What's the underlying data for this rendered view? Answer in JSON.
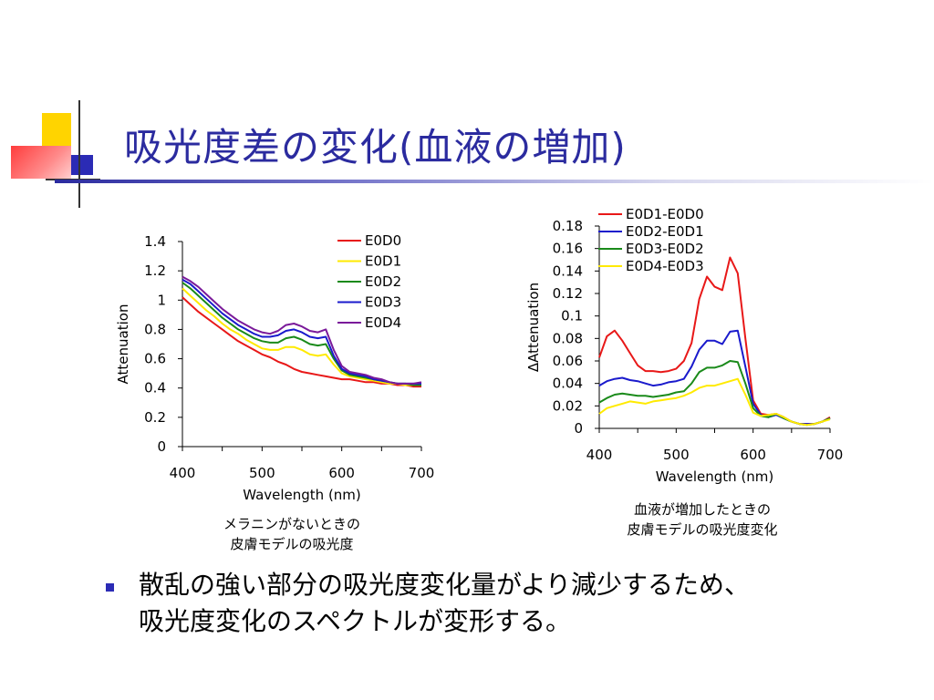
{
  "slide": {
    "title": "吸光度差の変化(血液の増加)",
    "bullet_line1": "散乱の強い部分の吸光度変化量がより減少するため、",
    "bullet_line2": "吸光度変化のスペクトルが変形する。",
    "caption_left_1": "メラニンがないときの",
    "caption_left_2": "皮膚モデルの吸光度",
    "caption_right_1": "血液が増加したときの",
    "caption_right_2": "皮膚モデルの吸光度変化",
    "colors": {
      "title": "#2b2b9f",
      "accent_yellow": "#ffd400",
      "accent_red": "#ff4a4a",
      "accent_blue": "#2b2bb5"
    }
  },
  "chart_data": [
    {
      "type": "line",
      "xlabel": "Wavelength (nm)",
      "ylabel": "Attenuation",
      "xlim": [
        400,
        700
      ],
      "ylim": [
        0,
        1.4
      ],
      "xticks": [
        400,
        500,
        600,
        700
      ],
      "yticks": [
        "0",
        "0.2",
        "0.4",
        "0.6",
        "0.8",
        "1",
        "1.2",
        "1.4"
      ],
      "yticks_values": [
        0,
        0.2,
        0.4,
        0.6,
        0.8,
        1.0,
        1.2,
        1.4
      ],
      "grid": false,
      "legend": "top-right",
      "x": [
        400,
        410,
        420,
        430,
        440,
        450,
        460,
        470,
        480,
        490,
        500,
        510,
        520,
        530,
        540,
        550,
        560,
        570,
        580,
        590,
        600,
        610,
        620,
        630,
        640,
        650,
        660,
        670,
        680,
        690,
        700
      ],
      "series": [
        {
          "name": "E0D0",
          "color": "#e81818",
          "values": [
            1.02,
            0.97,
            0.92,
            0.88,
            0.84,
            0.8,
            0.76,
            0.72,
            0.69,
            0.66,
            0.63,
            0.61,
            0.58,
            0.56,
            0.53,
            0.51,
            0.5,
            0.49,
            0.48,
            0.47,
            0.46,
            0.46,
            0.45,
            0.44,
            0.44,
            0.43,
            0.43,
            0.42,
            0.42,
            0.41,
            0.41
          ]
        },
        {
          "name": "E0D1",
          "color": "#ffea00",
          "values": [
            1.08,
            1.03,
            0.98,
            0.93,
            0.89,
            0.84,
            0.8,
            0.77,
            0.73,
            0.7,
            0.67,
            0.66,
            0.66,
            0.68,
            0.68,
            0.66,
            0.63,
            0.62,
            0.63,
            0.56,
            0.5,
            0.48,
            0.47,
            0.46,
            0.45,
            0.44,
            0.43,
            0.43,
            0.42,
            0.42,
            0.42
          ]
        },
        {
          "name": "E0D2",
          "color": "#1a8a1a",
          "values": [
            1.12,
            1.08,
            1.03,
            0.98,
            0.93,
            0.88,
            0.84,
            0.8,
            0.77,
            0.74,
            0.72,
            0.71,
            0.71,
            0.74,
            0.75,
            0.73,
            0.7,
            0.69,
            0.7,
            0.6,
            0.52,
            0.49,
            0.48,
            0.47,
            0.46,
            0.45,
            0.44,
            0.43,
            0.43,
            0.42,
            0.42
          ]
        },
        {
          "name": "E0D3",
          "color": "#1a1acc",
          "values": [
            1.14,
            1.11,
            1.06,
            1.01,
            0.96,
            0.91,
            0.87,
            0.83,
            0.8,
            0.77,
            0.75,
            0.75,
            0.76,
            0.79,
            0.8,
            0.78,
            0.75,
            0.74,
            0.75,
            0.62,
            0.53,
            0.5,
            0.49,
            0.48,
            0.46,
            0.45,
            0.44,
            0.43,
            0.43,
            0.43,
            0.43
          ]
        },
        {
          "name": "E0D4",
          "color": "#7a1a9a",
          "values": [
            1.16,
            1.13,
            1.09,
            1.04,
            0.99,
            0.94,
            0.9,
            0.86,
            0.83,
            0.8,
            0.78,
            0.77,
            0.79,
            0.83,
            0.84,
            0.82,
            0.79,
            0.78,
            0.8,
            0.66,
            0.55,
            0.51,
            0.5,
            0.49,
            0.47,
            0.46,
            0.44,
            0.43,
            0.43,
            0.43,
            0.44
          ]
        }
      ]
    },
    {
      "type": "line",
      "xlabel": "Wavelength (nm)",
      "ylabel": "ΔAttenuation",
      "xlim": [
        400,
        700
      ],
      "ylim": [
        0,
        0.18
      ],
      "xticks": [
        400,
        500,
        600,
        700
      ],
      "yticks": [
        "0",
        "0.02",
        "0.04",
        "0.06",
        "0.08",
        "0.1",
        "0.12",
        "0.14",
        "0.16",
        "0.18"
      ],
      "yticks_values": [
        0,
        0.02,
        0.04,
        0.06,
        0.08,
        0.1,
        0.12,
        0.14,
        0.16,
        0.18
      ],
      "grid": false,
      "legend": "top-left",
      "x": [
        400,
        410,
        420,
        430,
        440,
        450,
        460,
        470,
        480,
        490,
        500,
        510,
        520,
        530,
        540,
        550,
        560,
        570,
        580,
        590,
        600,
        610,
        620,
        630,
        640,
        650,
        660,
        670,
        680,
        690,
        700
      ],
      "series": [
        {
          "name": "E0D1-E0D0",
          "color": "#e81818",
          "values": [
            0.063,
            0.082,
            0.087,
            0.078,
            0.067,
            0.056,
            0.051,
            0.051,
            0.05,
            0.051,
            0.053,
            0.06,
            0.076,
            0.115,
            0.135,
            0.126,
            0.123,
            0.152,
            0.138,
            0.08,
            0.025,
            0.013,
            0.012,
            0.013,
            0.01,
            0.006,
            0.004,
            0.004,
            0.004,
            0.006,
            0.01
          ]
        },
        {
          "name": "E0D2-E0D1",
          "color": "#1a1acc",
          "values": [
            0.038,
            0.042,
            0.044,
            0.045,
            0.043,
            0.042,
            0.04,
            0.038,
            0.039,
            0.041,
            0.042,
            0.044,
            0.055,
            0.07,
            0.078,
            0.078,
            0.075,
            0.086,
            0.087,
            0.055,
            0.022,
            0.012,
            0.01,
            0.012,
            0.009,
            0.006,
            0.004,
            0.004,
            0.004,
            0.006,
            0.009
          ]
        },
        {
          "name": "E0D3-E0D2",
          "color": "#1a8a1a",
          "values": [
            0.023,
            0.027,
            0.03,
            0.031,
            0.03,
            0.029,
            0.029,
            0.028,
            0.029,
            0.03,
            0.032,
            0.033,
            0.04,
            0.05,
            0.054,
            0.054,
            0.056,
            0.06,
            0.059,
            0.04,
            0.018,
            0.011,
            0.01,
            0.013,
            0.009,
            0.006,
            0.004,
            0.003,
            0.004,
            0.006,
            0.009
          ]
        },
        {
          "name": "E0D4-E0D3",
          "color": "#ffea00",
          "values": [
            0.013,
            0.018,
            0.02,
            0.022,
            0.024,
            0.023,
            0.022,
            0.024,
            0.025,
            0.026,
            0.027,
            0.029,
            0.032,
            0.036,
            0.038,
            0.038,
            0.04,
            0.042,
            0.044,
            0.03,
            0.014,
            0.011,
            0.012,
            0.013,
            0.01,
            0.006,
            0.004,
            0.003,
            0.004,
            0.006,
            0.008
          ]
        }
      ]
    }
  ]
}
